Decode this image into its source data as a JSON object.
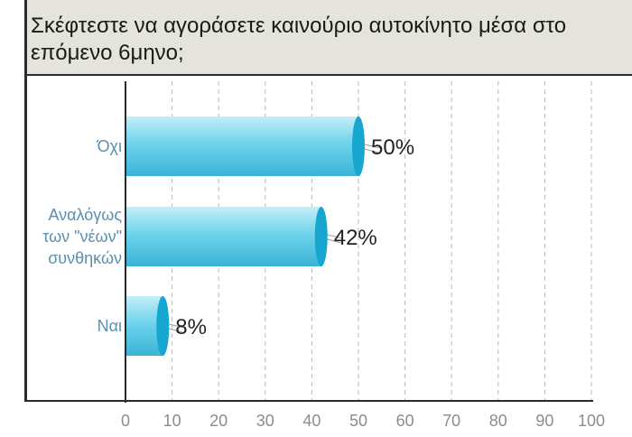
{
  "chart_data": {
    "type": "bar",
    "orientation": "horizontal",
    "title": "Σκέφτεστε να αγοράσετε καινούριο αυτοκίνητο μέσα στο επόμενο 6μηνο;",
    "categories": [
      [
        "Όχι"
      ],
      [
        "Αναλόγως",
        "των \"νέων\"",
        "συνθηκών"
      ],
      [
        "Ναι"
      ]
    ],
    "values": [
      50,
      42,
      8
    ],
    "value_labels": [
      "50%",
      "42%",
      "8%"
    ],
    "xlim": [
      0,
      100
    ],
    "xticks": [
      "0",
      "10",
      "20",
      "30",
      "40",
      "50",
      "60",
      "70",
      "80",
      "90",
      "100"
    ],
    "grid": "vertical-dashed",
    "legend": "none"
  },
  "colors": {
    "bar_light": "#c4eef8",
    "bar_mid": "#6fd3ec",
    "bar_dark": "#39b4d6",
    "bar_cap": "#17a6cf",
    "axis": "#2b2b2b",
    "grid": "#b8b8b8",
    "category_label": "#5a8fb0",
    "tick_label": "#8c8c8c",
    "value_label": "#222222",
    "title_band": "#e4e3dc"
  }
}
